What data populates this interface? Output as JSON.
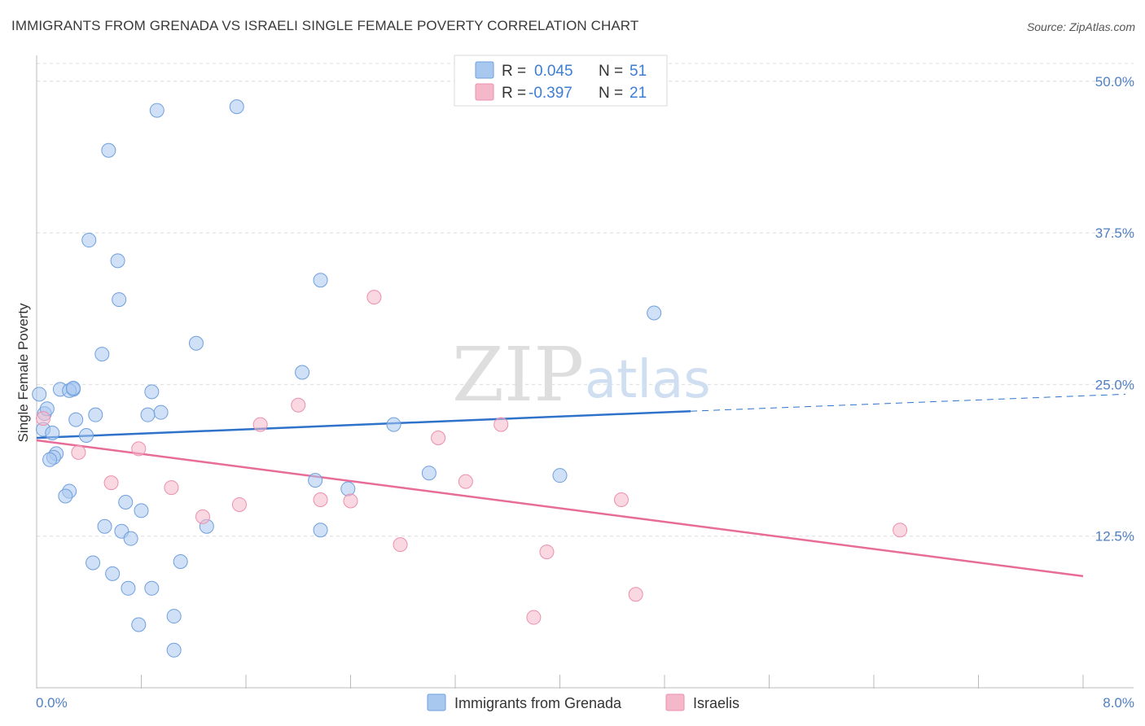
{
  "title": "IMMIGRANTS FROM GRENADA VS ISRAELI SINGLE FEMALE POVERTY CORRELATION CHART",
  "source": "Source: ZipAtlas.com",
  "watermark": {
    "zip": "ZIP",
    "atlas": "atlas"
  },
  "legend_top": {
    "rows": [
      {
        "r_label": "R =",
        "r_value": "0.045",
        "n_label": "N =",
        "n_value": "51",
        "color": "#a9c8f0"
      },
      {
        "r_label": "R =",
        "r_value": "-0.397",
        "n_label": "N =",
        "n_value": "21",
        "color": "#f5b8cb"
      }
    ]
  },
  "chart_data": {
    "type": "scatter",
    "title": "IMMIGRANTS FROM GRENADA VS ISRAELI SINGLE FEMALE POVERTY CORRELATION CHART",
    "xlabel": "",
    "ylabel": "Single Female Poverty",
    "xlim": [
      0,
      8
    ],
    "ylim": [
      0,
      52
    ],
    "x_tick_labels": [
      "0.0%",
      "8.0%"
    ],
    "y_ticks": [
      12.5,
      25.0,
      37.5,
      50.0
    ],
    "y_tick_labels": [
      "12.5%",
      "25.0%",
      "37.5%",
      "50.0%"
    ],
    "grid": true,
    "legend_position": "bottom",
    "series": [
      {
        "name": "Immigrants from Grenada",
        "color": "#a9c8f0",
        "stroke": "#6f9fdd",
        "trend_color": "#2f72c9",
        "trend": {
          "x0": 0.0,
          "y0": 20.6,
          "x1": 5.0,
          "y1": 22.8,
          "dash_to_x": 8.0,
          "dash_to_y": 24.2
        },
        "points": [
          [
            0.02,
            24.2
          ],
          [
            0.06,
            22.6
          ],
          [
            0.08,
            23.0
          ],
          [
            0.05,
            21.3
          ],
          [
            0.12,
            21.0
          ],
          [
            0.18,
            24.6
          ],
          [
            0.28,
            24.6
          ],
          [
            0.25,
            24.5
          ],
          [
            0.28,
            24.7
          ],
          [
            0.3,
            22.1
          ],
          [
            0.45,
            22.5
          ],
          [
            0.38,
            20.8
          ],
          [
            0.15,
            19.3
          ],
          [
            0.13,
            19.0
          ],
          [
            0.1,
            18.8
          ],
          [
            0.25,
            16.2
          ],
          [
            0.22,
            15.8
          ],
          [
            0.5,
            27.5
          ],
          [
            0.4,
            36.9
          ],
          [
            0.62,
            35.2
          ],
          [
            0.63,
            32.0
          ],
          [
            0.55,
            44.3
          ],
          [
            0.92,
            47.6
          ],
          [
            1.53,
            47.9
          ],
          [
            0.88,
            24.4
          ],
          [
            0.95,
            22.7
          ],
          [
            0.85,
            22.5
          ],
          [
            1.22,
            28.4
          ],
          [
            2.03,
            26.0
          ],
          [
            2.17,
            33.6
          ],
          [
            0.68,
            15.3
          ],
          [
            0.8,
            14.6
          ],
          [
            0.52,
            13.3
          ],
          [
            0.65,
            12.9
          ],
          [
            0.72,
            12.3
          ],
          [
            1.3,
            13.3
          ],
          [
            0.43,
            10.3
          ],
          [
            0.58,
            9.4
          ],
          [
            0.7,
            8.2
          ],
          [
            0.88,
            8.2
          ],
          [
            1.1,
            10.4
          ],
          [
            0.78,
            5.2
          ],
          [
            1.05,
            5.9
          ],
          [
            1.05,
            3.1
          ],
          [
            2.13,
            17.1
          ],
          [
            2.38,
            16.4
          ],
          [
            2.17,
            13.0
          ],
          [
            2.73,
            21.7
          ],
          [
            3.0,
            17.7
          ],
          [
            4.0,
            17.5
          ],
          [
            4.72,
            30.9
          ]
        ]
      },
      {
        "name": "Israelis",
        "color": "#f5b8cb",
        "stroke": "#ec8fae",
        "trend_color": "#e76c98",
        "trend": {
          "x0": 0.0,
          "y0": 20.4,
          "x1": 8.0,
          "y1": 9.2
        },
        "points": [
          [
            0.05,
            22.2
          ],
          [
            0.32,
            19.4
          ],
          [
            0.57,
            16.9
          ],
          [
            0.78,
            19.7
          ],
          [
            1.03,
            16.5
          ],
          [
            1.27,
            14.1
          ],
          [
            1.55,
            15.1
          ],
          [
            1.71,
            21.7
          ],
          [
            2.0,
            23.3
          ],
          [
            2.17,
            15.5
          ],
          [
            2.4,
            15.4
          ],
          [
            2.58,
            32.2
          ],
          [
            2.78,
            11.8
          ],
          [
            3.07,
            20.6
          ],
          [
            3.28,
            17.0
          ],
          [
            3.55,
            21.7
          ],
          [
            3.8,
            5.8
          ],
          [
            3.9,
            11.2
          ],
          [
            4.47,
            15.5
          ],
          [
            4.58,
            7.7
          ],
          [
            6.6,
            13.0
          ]
        ]
      }
    ]
  }
}
